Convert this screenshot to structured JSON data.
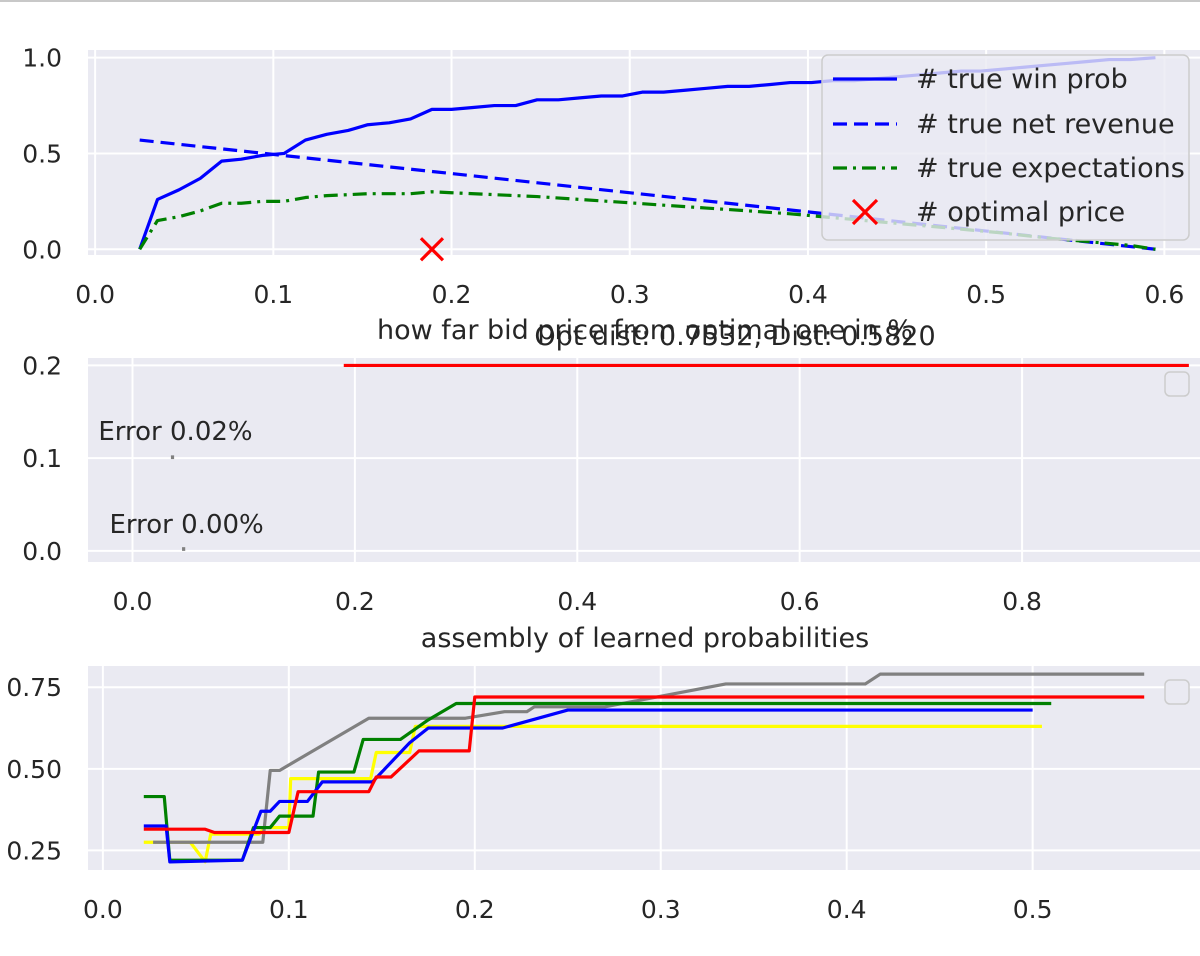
{
  "chart_data": [
    {
      "type": "line",
      "title": "",
      "xlim": [
        -0.004,
        0.62
      ],
      "ylim": [
        -0.03,
        1.04
      ],
      "xticks": [
        0.0,
        0.1,
        0.2,
        0.3,
        0.4,
        0.5,
        0.6
      ],
      "xtick_labels": [
        "0.0",
        "0.1",
        "0.2",
        "0.3",
        "0.4",
        "0.5",
        "0.6"
      ],
      "yticks": [
        0.0,
        0.5,
        1.0
      ],
      "ytick_labels": [
        "0.0",
        "0.5",
        "1.0"
      ],
      "grid": true,
      "legend_position": "top-right",
      "series": [
        {
          "name": "# true win prob",
          "color": "#0000ff",
          "style": "solid",
          "x": [
            0.025,
            0.035,
            0.047,
            0.059,
            0.071,
            0.082,
            0.094,
            0.106,
            0.118,
            0.13,
            0.142,
            0.153,
            0.165,
            0.177,
            0.189,
            0.2,
            0.212,
            0.224,
            0.236,
            0.248,
            0.26,
            0.272,
            0.284,
            0.296,
            0.307,
            0.319,
            0.331,
            0.343,
            0.355,
            0.367,
            0.379,
            0.39,
            0.402,
            0.414,
            0.426,
            0.438,
            0.45,
            0.462,
            0.474,
            0.486,
            0.497,
            0.509,
            0.521,
            0.533,
            0.545,
            0.557,
            0.569,
            0.581,
            0.595
          ],
          "y": [
            0.0,
            0.26,
            0.31,
            0.37,
            0.46,
            0.47,
            0.49,
            0.5,
            0.57,
            0.6,
            0.62,
            0.65,
            0.66,
            0.68,
            0.73,
            0.73,
            0.74,
            0.75,
            0.75,
            0.78,
            0.78,
            0.79,
            0.8,
            0.8,
            0.82,
            0.82,
            0.83,
            0.84,
            0.85,
            0.85,
            0.86,
            0.87,
            0.87,
            0.88,
            0.88,
            0.89,
            0.9,
            0.91,
            0.92,
            0.93,
            0.93,
            0.94,
            0.95,
            0.96,
            0.97,
            0.98,
            0.99,
            0.99,
            1.0
          ]
        },
        {
          "name": "# true net revenue",
          "color": "#0000ff",
          "style": "dashed",
          "x": [
            0.025,
            0.595
          ],
          "y": [
            0.57,
            0.0
          ]
        },
        {
          "name": "# true expectations",
          "color": "#008000",
          "style": "dashdot",
          "x": [
            0.025,
            0.035,
            0.047,
            0.059,
            0.071,
            0.082,
            0.094,
            0.106,
            0.118,
            0.13,
            0.142,
            0.153,
            0.165,
            0.177,
            0.189,
            0.2,
            0.224,
            0.248,
            0.272,
            0.296,
            0.319,
            0.343,
            0.367,
            0.39,
            0.414,
            0.438,
            0.462,
            0.486,
            0.509,
            0.533,
            0.557,
            0.581,
            0.595
          ],
          "y": [
            0.0,
            0.15,
            0.17,
            0.2,
            0.24,
            0.24,
            0.25,
            0.25,
            0.27,
            0.28,
            0.285,
            0.29,
            0.29,
            0.29,
            0.3,
            0.295,
            0.285,
            0.275,
            0.26,
            0.245,
            0.23,
            0.215,
            0.2,
            0.185,
            0.165,
            0.145,
            0.125,
            0.105,
            0.085,
            0.06,
            0.04,
            0.02,
            0.0
          ]
        }
      ],
      "marker": {
        "name": "# optimal price",
        "color": "#ff0000",
        "symbol": "x",
        "x": 0.189,
        "y": 0.0
      },
      "legend": [
        "# true win prob",
        "# true net revenue",
        "# true expectations",
        "# optimal price"
      ]
    },
    {
      "type": "line",
      "title": "how far bid price from optimal one in %",
      "subtitle": "Opt dist: 0.7532, Dist: 0.5820",
      "xlim": [
        -0.04,
        0.96
      ],
      "ylim": [
        -0.012,
        0.208
      ],
      "xticks": [
        0.0,
        0.2,
        0.4,
        0.6,
        0.8
      ],
      "xtick_labels": [
        "0.0",
        "0.2",
        "0.4",
        "0.6",
        "0.8"
      ],
      "yticks": [
        0.0,
        0.1,
        0.2
      ],
      "ytick_labels": [
        "0.0",
        "0.1",
        "0.2"
      ],
      "grid": true,
      "legend_position": "top-right",
      "series": [
        {
          "color": "#ff0000",
          "style": "solid",
          "x": [
            0.19,
            0.95
          ],
          "y": [
            0.2,
            0.2
          ]
        },
        {
          "color": "#808080",
          "style": "solid",
          "x": [
            0.036,
            0.036
          ],
          "y": [
            0.099,
            0.103
          ]
        },
        {
          "color": "#808080",
          "style": "solid",
          "x": [
            0.046,
            0.046
          ],
          "y": [
            0.0,
            0.004
          ]
        }
      ],
      "annotations": [
        {
          "text": "Error 0.02%",
          "x": 0.036,
          "y": 0.1
        },
        {
          "text": "Error 0.00%",
          "x": 0.046,
          "y": 0.0
        }
      ]
    },
    {
      "type": "line",
      "title": "assembly of learned probabilities",
      "xlim": [
        -0.008,
        0.59
      ],
      "ylim": [
        0.19,
        0.815
      ],
      "xticks": [
        0.0,
        0.1,
        0.2,
        0.3,
        0.4,
        0.5
      ],
      "xtick_labels": [
        "0.0",
        "0.1",
        "0.2",
        "0.3",
        "0.4",
        "0.5"
      ],
      "yticks": [
        0.25,
        0.5,
        0.75
      ],
      "ytick_labels": [
        "0.25",
        "0.50",
        "0.75"
      ],
      "grid": true,
      "legend_position": "top-right",
      "series": [
        {
          "color": "#ffff00",
          "x": [
            0.022,
            0.027,
            0.047,
            0.055,
            0.058,
            0.084,
            0.087,
            0.1,
            0.101,
            0.144,
            0.147,
            0.165,
            0.168,
            0.19,
            0.21,
            0.505
          ],
          "y": [
            0.275,
            0.275,
            0.275,
            0.215,
            0.3,
            0.3,
            0.32,
            0.32,
            0.47,
            0.47,
            0.55,
            0.55,
            0.63,
            0.63,
            0.63,
            0.63
          ]
        },
        {
          "color": "#808080",
          "x": [
            0.027,
            0.086,
            0.09,
            0.095,
            0.143,
            0.16,
            0.195,
            0.216,
            0.228,
            0.232,
            0.27,
            0.335,
            0.41,
            0.418,
            0.56
          ],
          "y": [
            0.275,
            0.275,
            0.495,
            0.495,
            0.655,
            0.655,
            0.655,
            0.675,
            0.675,
            0.69,
            0.69,
            0.76,
            0.76,
            0.79,
            0.79
          ]
        },
        {
          "color": "#008000",
          "x": [
            0.022,
            0.033,
            0.036,
            0.075,
            0.081,
            0.09,
            0.095,
            0.101,
            0.113,
            0.116,
            0.135,
            0.14,
            0.16,
            0.175,
            0.19,
            0.51
          ],
          "y": [
            0.415,
            0.415,
            0.22,
            0.22,
            0.32,
            0.32,
            0.355,
            0.355,
            0.355,
            0.49,
            0.49,
            0.59,
            0.59,
            0.65,
            0.7,
            0.7
          ]
        },
        {
          "color": "#0000ff",
          "x": [
            0.022,
            0.034,
            0.036,
            0.075,
            0.085,
            0.09,
            0.095,
            0.11,
            0.118,
            0.145,
            0.165,
            0.175,
            0.195,
            0.215,
            0.25,
            0.5
          ],
          "y": [
            0.325,
            0.325,
            0.215,
            0.22,
            0.37,
            0.37,
            0.4,
            0.4,
            0.46,
            0.46,
            0.58,
            0.625,
            0.625,
            0.625,
            0.68,
            0.68
          ]
        },
        {
          "color": "#ff0000",
          "x": [
            0.022,
            0.055,
            0.06,
            0.1,
            0.105,
            0.143,
            0.147,
            0.155,
            0.17,
            0.197,
            0.2,
            0.56
          ],
          "y": [
            0.315,
            0.315,
            0.305,
            0.305,
            0.43,
            0.43,
            0.475,
            0.475,
            0.555,
            0.555,
            0.72,
            0.72
          ]
        }
      ]
    }
  ]
}
